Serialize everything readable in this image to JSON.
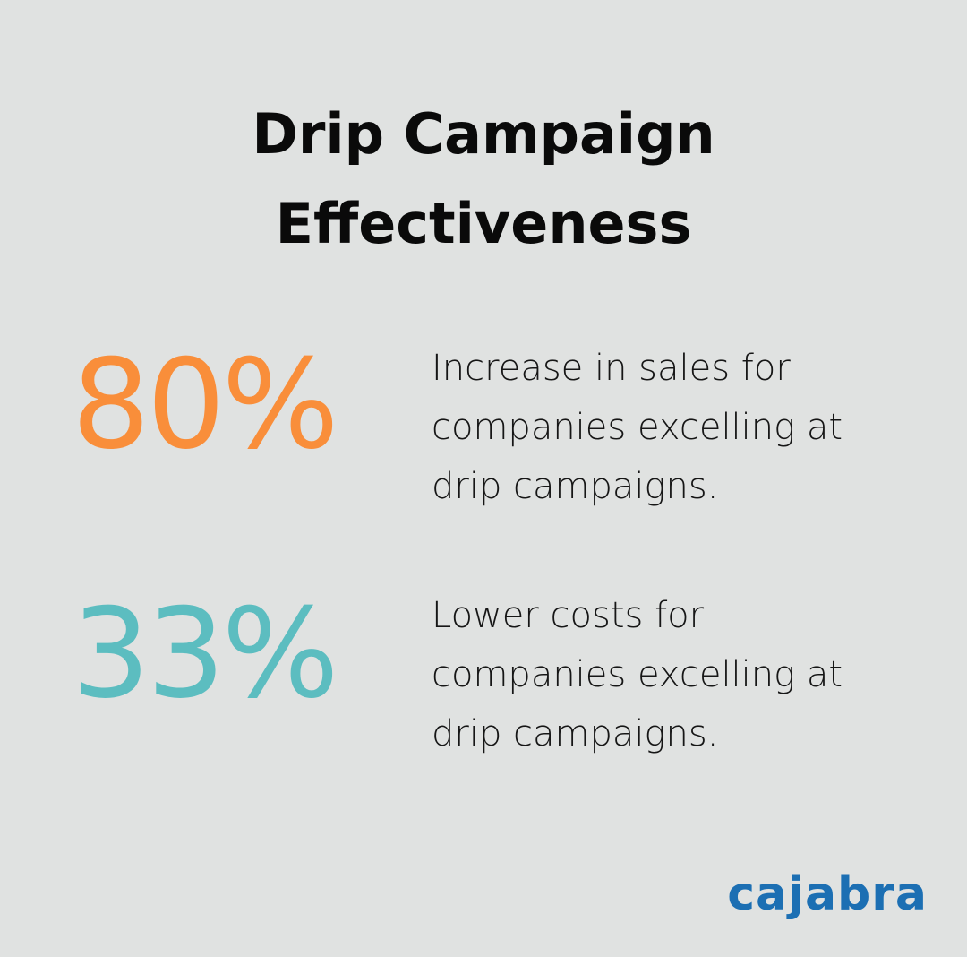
{
  "header": {
    "title": "Drip Campaign Effectiveness"
  },
  "stats": [
    {
      "value": "80%",
      "color": "#f98e3a",
      "text": "Increase in sales for companies excelling at drip campaigns."
    },
    {
      "value": "33%",
      "color": "#5cbdc0",
      "text": "Lower costs for companies excelling at drip campaigns."
    }
  ],
  "footer": {
    "logo": "cajabra"
  }
}
